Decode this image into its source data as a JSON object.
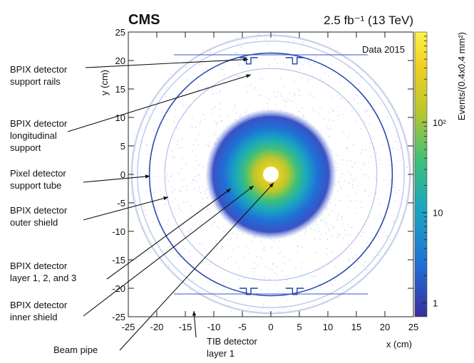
{
  "chart_data": {
    "type": "heatmap",
    "experiment_label": "CMS",
    "luminosity_label": "2.5 fb⁻¹ (13 TeV)",
    "dataset_label": "Data 2015",
    "xlabel": "x (cm)",
    "ylabel": "y (cm)",
    "colorbar_label": "Events/(0.4x0.4 mm²)",
    "xlim": [
      -25,
      25
    ],
    "ylim": [
      -25,
      25
    ],
    "x_ticks": [
      "-25",
      "-20",
      "-15",
      "-10",
      "-5",
      "0",
      "5",
      "10",
      "15",
      "20",
      "25"
    ],
    "y_ticks": [
      "25",
      "20",
      "15",
      "10",
      "5",
      "0",
      "-5",
      "-10",
      "-15",
      "-20",
      "-25"
    ],
    "colorbar": {
      "scale": "log",
      "range": [
        0.7,
        1000
      ],
      "ticks": [
        {
          "value": 1,
          "label": "1"
        },
        {
          "value": 10,
          "label": "10"
        },
        {
          "value": 100,
          "label": "10²"
        }
      ],
      "colors": [
        "#3a2f9a",
        "#1f6fd6",
        "#1aa6c0",
        "#3fbf7a",
        "#b8c72e",
        "#f0d020",
        "#fbf34a"
      ]
    },
    "annotations": [
      {
        "lines": [
          "BPIX detector",
          "support rails"
        ],
        "target": [
          -4,
          20.2
        ]
      },
      {
        "lines": [
          "BPIX detector",
          "longitudinal",
          "support"
        ],
        "target": [
          -3.5,
          17.5
        ]
      },
      {
        "lines": [
          "Pixel detector",
          "support tube"
        ],
        "target": [
          -21.2,
          -0.3
        ]
      },
      {
        "lines": [
          "BPIX detector",
          "outer shield"
        ],
        "target": [
          -18,
          -4
        ]
      },
      {
        "lines": [
          "BPIX detector",
          "layer 1, 2, and 3"
        ],
        "target": [
          -7,
          -2.5
        ]
      },
      {
        "lines": [
          "BPIX detector",
          "inner shield"
        ],
        "target": [
          -3,
          -2
        ]
      },
      {
        "lines": [
          "Beam pipe"
        ],
        "target": [
          0.5,
          -1.5
        ]
      },
      {
        "lines": [
          "TIB detector",
          "layer 1"
        ],
        "target": [
          -13.5,
          -24
        ]
      }
    ]
  }
}
